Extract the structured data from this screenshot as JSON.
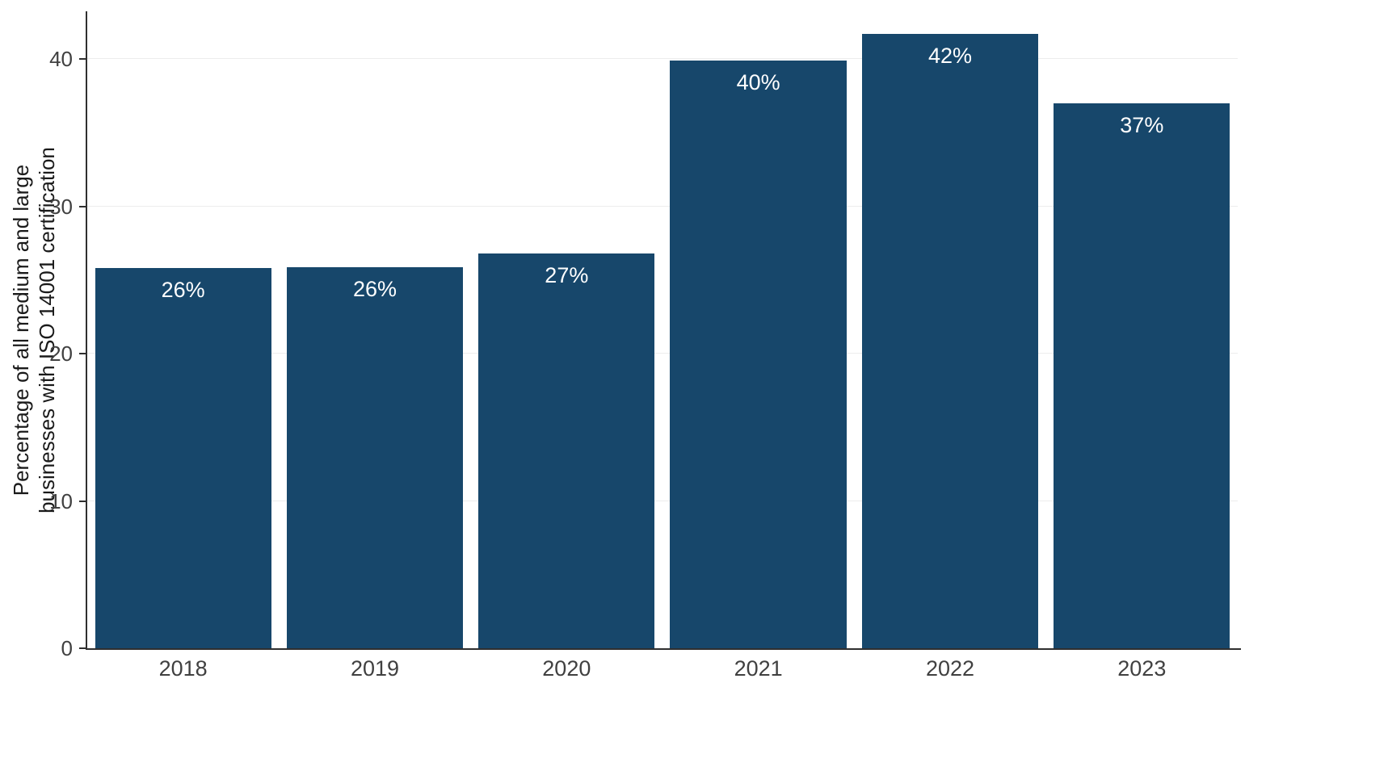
{
  "chart_data": {
    "type": "bar",
    "categories": [
      "2018",
      "2019",
      "2020",
      "2021",
      "2022",
      "2023"
    ],
    "values": [
      25.8,
      25.9,
      26.8,
      39.9,
      41.7,
      37.0
    ],
    "labels": [
      "26%",
      "26%",
      "27%",
      "40%",
      "42%",
      "37%"
    ],
    "title": "",
    "xlabel": "",
    "ylabel": "Percentage of all medium and large\nbusinesses with ISO 14001 certification",
    "ylim": [
      0,
      43.2
    ],
    "yticks": [
      0,
      10,
      20,
      30,
      40
    ],
    "grid": true,
    "legend": "none",
    "bar_color": "#17476b",
    "bar_label_color": "#ffffff",
    "axis_color": "#2f2f2f",
    "grid_color": "#ededed",
    "tick_label_color": "#404040"
  }
}
